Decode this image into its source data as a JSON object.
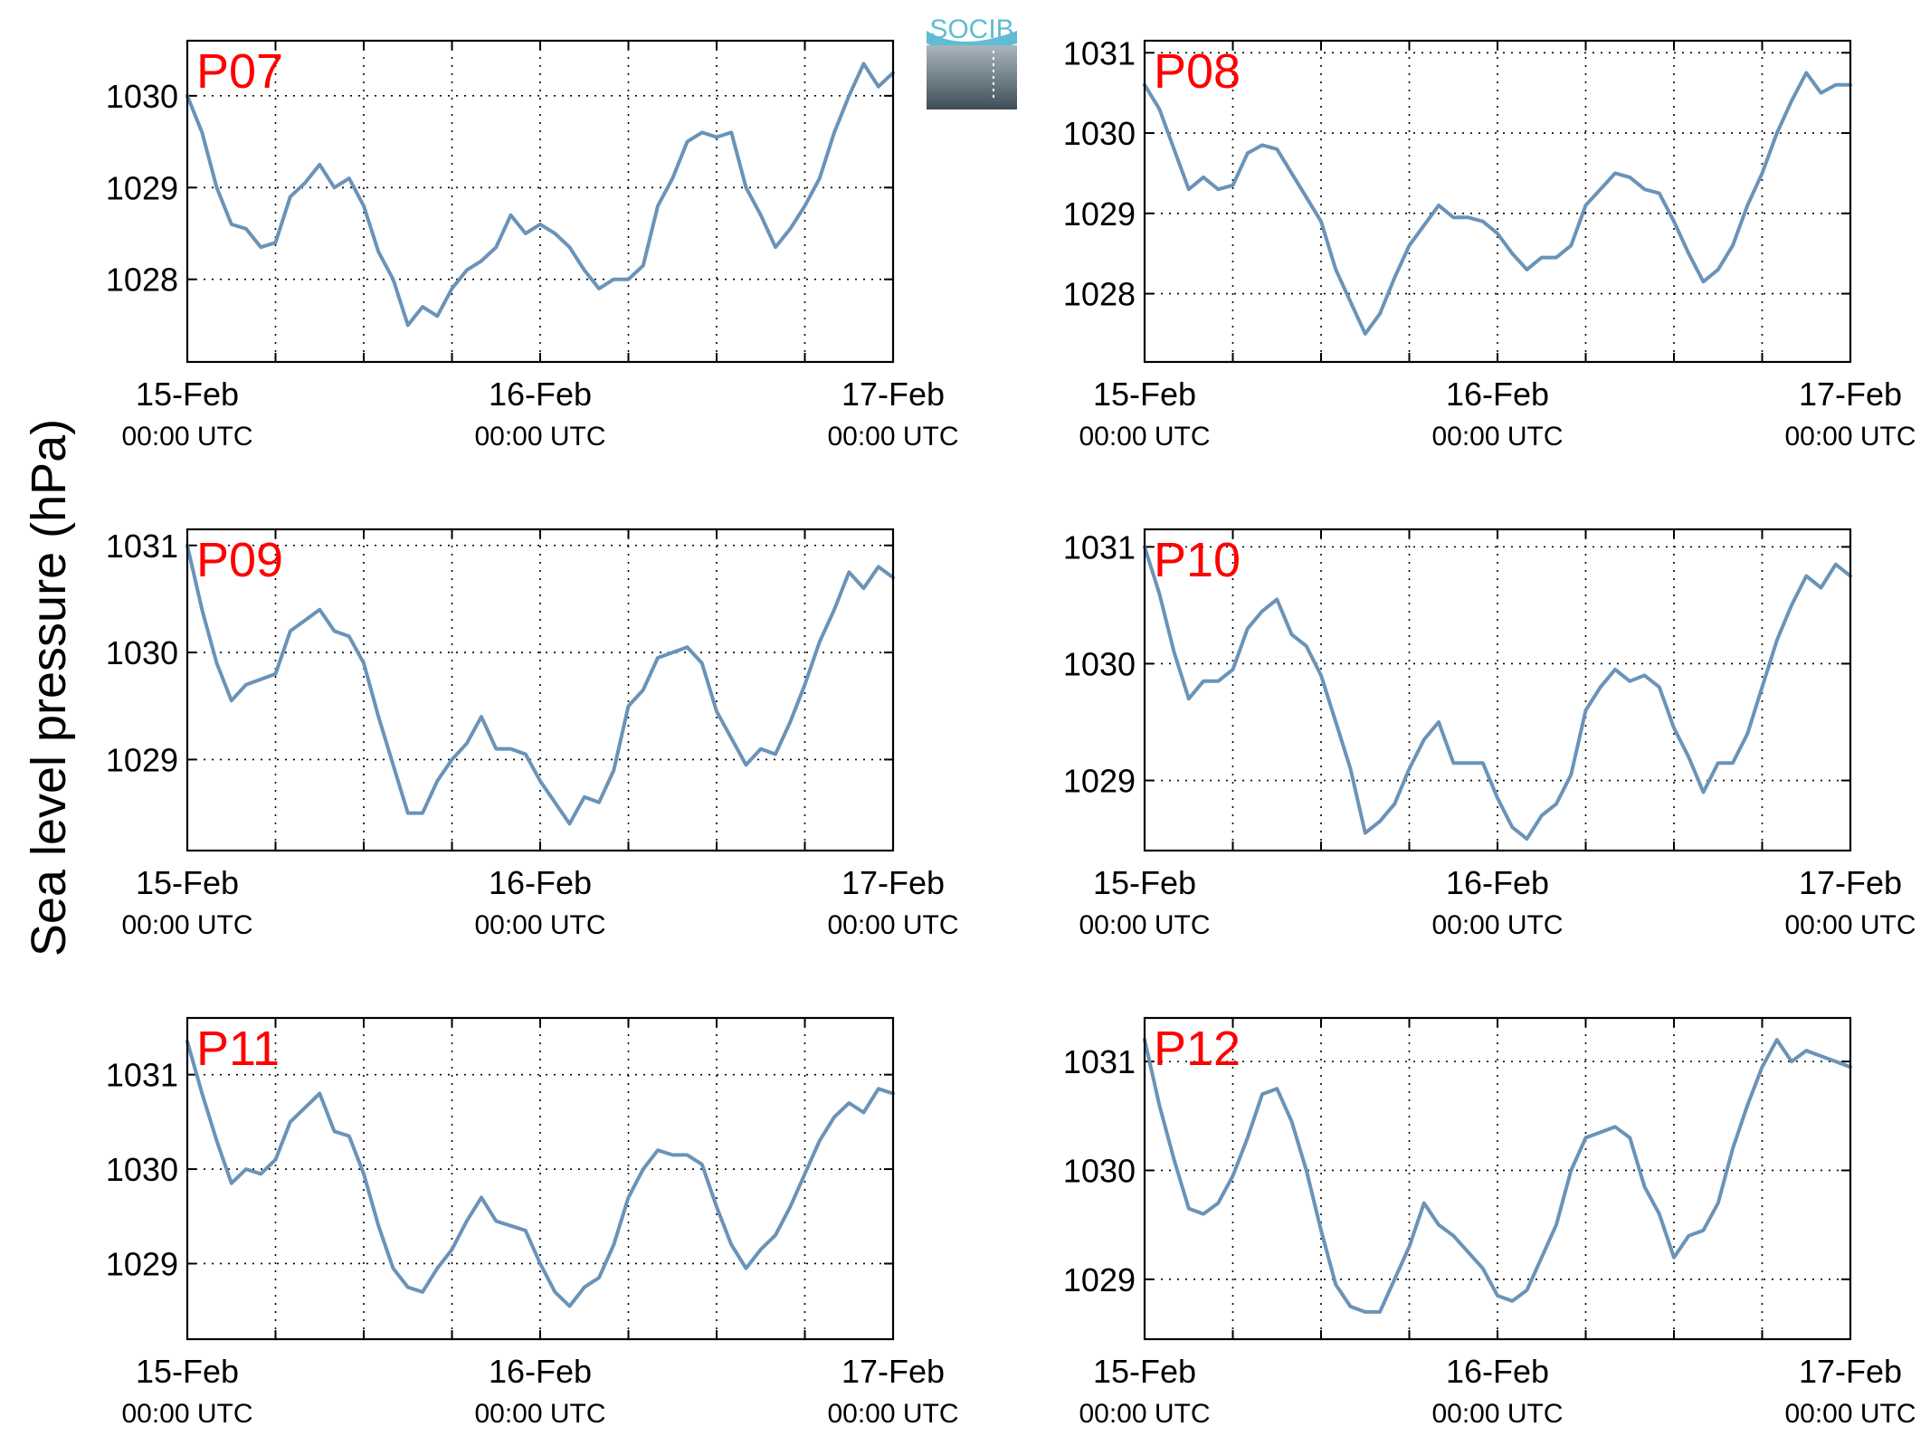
{
  "figure": {
    "ylabel": "Sea level pressure (hPa)",
    "logo_text": "SOCIB",
    "line_color": "#6a93b8",
    "station_label_color": "#ff0000",
    "x_ticks": [
      {
        "date": "15-Feb",
        "time": "00:00 UTC"
      },
      {
        "date": "16-Feb",
        "time": "00:00 UTC"
      },
      {
        "date": "17-Feb",
        "time": "00:00 UTC"
      }
    ]
  },
  "chart_data": [
    {
      "type": "line",
      "label": "P07",
      "xlabel": "",
      "ylabel": "Sea level pressure (hPa)",
      "xlim": [
        0,
        48
      ],
      "ylim": [
        1027.1,
        1030.6
      ],
      "yticks": [
        1028,
        1029,
        1030
      ],
      "grid": true,
      "x": [
        0,
        1,
        2,
        3,
        4,
        5,
        6,
        7,
        8,
        9,
        10,
        11,
        12,
        13,
        14,
        15,
        16,
        17,
        18,
        19,
        20,
        21,
        22,
        23,
        24,
        25,
        26,
        27,
        28,
        29,
        30,
        31,
        32,
        33,
        34,
        35,
        36,
        37,
        38,
        39,
        40,
        41,
        42,
        43,
        44,
        45,
        46,
        47,
        48
      ],
      "y": [
        1030.0,
        1029.6,
        1029.0,
        1028.6,
        1028.55,
        1028.35,
        1028.4,
        1028.9,
        1029.05,
        1029.25,
        1029.0,
        1029.1,
        1028.8,
        1028.3,
        1028.0,
        1027.5,
        1027.7,
        1027.6,
        1027.9,
        1028.1,
        1028.2,
        1028.35,
        1028.7,
        1028.5,
        1028.6,
        1028.5,
        1028.35,
        1028.1,
        1027.9,
        1028.0,
        1028.0,
        1028.15,
        1028.8,
        1029.1,
        1029.5,
        1029.6,
        1029.55,
        1029.6,
        1029.0,
        1028.7,
        1028.35,
        1028.55,
        1028.8,
        1029.1,
        1029.6,
        1030.0,
        1030.35,
        1030.1,
        1030.25
      ]
    },
    {
      "type": "line",
      "label": "P08",
      "xlabel": "",
      "ylabel": "Sea level pressure (hPa)",
      "xlim": [
        0,
        48
      ],
      "ylim": [
        1027.15,
        1031.15
      ],
      "yticks": [
        1028,
        1029,
        1030,
        1031
      ],
      "grid": true,
      "x": [
        0,
        1,
        2,
        3,
        4,
        5,
        6,
        7,
        8,
        9,
        10,
        11,
        12,
        13,
        14,
        15,
        16,
        17,
        18,
        19,
        20,
        21,
        22,
        23,
        24,
        25,
        26,
        27,
        28,
        29,
        30,
        31,
        32,
        33,
        34,
        35,
        36,
        37,
        38,
        39,
        40,
        41,
        42,
        43,
        44,
        45,
        46,
        47,
        48
      ],
      "y": [
        1030.6,
        1030.3,
        1029.8,
        1029.3,
        1029.45,
        1029.3,
        1029.35,
        1029.75,
        1029.85,
        1029.8,
        1029.5,
        1029.2,
        1028.9,
        1028.3,
        1027.9,
        1027.5,
        1027.75,
        1028.2,
        1028.6,
        1028.85,
        1029.1,
        1028.95,
        1028.95,
        1028.9,
        1028.75,
        1028.5,
        1028.3,
        1028.45,
        1028.45,
        1028.6,
        1029.1,
        1029.3,
        1029.5,
        1029.45,
        1029.3,
        1029.25,
        1028.9,
        1028.5,
        1028.15,
        1028.3,
        1028.6,
        1029.1,
        1029.5,
        1030.0,
        1030.4,
        1030.75,
        1030.5,
        1030.6,
        1030.6
      ]
    },
    {
      "type": "line",
      "label": "P09",
      "xlabel": "",
      "ylabel": "Sea level pressure (hPa)",
      "xlim": [
        0,
        48
      ],
      "ylim": [
        1028.15,
        1031.15
      ],
      "yticks": [
        1029,
        1030,
        1031
      ],
      "grid": true,
      "x": [
        0,
        1,
        2,
        3,
        4,
        5,
        6,
        7,
        8,
        9,
        10,
        11,
        12,
        13,
        14,
        15,
        16,
        17,
        18,
        19,
        20,
        21,
        22,
        23,
        24,
        25,
        26,
        27,
        28,
        29,
        30,
        31,
        32,
        33,
        34,
        35,
        36,
        37,
        38,
        39,
        40,
        41,
        42,
        43,
        44,
        45,
        46,
        47,
        48
      ],
      "y": [
        1031.0,
        1030.4,
        1029.9,
        1029.55,
        1029.7,
        1029.75,
        1029.8,
        1030.2,
        1030.3,
        1030.4,
        1030.2,
        1030.15,
        1029.9,
        1029.4,
        1028.95,
        1028.5,
        1028.5,
        1028.8,
        1029.0,
        1029.15,
        1029.4,
        1029.1,
        1029.1,
        1029.05,
        1028.8,
        1028.6,
        1028.4,
        1028.65,
        1028.6,
        1028.9,
        1029.5,
        1029.65,
        1029.95,
        1030.0,
        1030.05,
        1029.9,
        1029.45,
        1029.2,
        1028.95,
        1029.1,
        1029.05,
        1029.35,
        1029.7,
        1030.1,
        1030.4,
        1030.75,
        1030.6,
        1030.8,
        1030.7
      ]
    },
    {
      "type": "line",
      "label": "P10",
      "xlabel": "",
      "ylabel": "Sea level pressure (hPa)",
      "xlim": [
        0,
        48
      ],
      "ylim": [
        1028.4,
        1031.15
      ],
      "yticks": [
        1029,
        1030,
        1031
      ],
      "grid": true,
      "x": [
        0,
        1,
        2,
        3,
        4,
        5,
        6,
        7,
        8,
        9,
        10,
        11,
        12,
        13,
        14,
        15,
        16,
        17,
        18,
        19,
        20,
        21,
        22,
        23,
        24,
        25,
        26,
        27,
        28,
        29,
        30,
        31,
        32,
        33,
        34,
        35,
        36,
        37,
        38,
        39,
        40,
        41,
        42,
        43,
        44,
        45,
        46,
        47,
        48
      ],
      "y": [
        1031.0,
        1030.6,
        1030.1,
        1029.7,
        1029.85,
        1029.85,
        1029.95,
        1030.3,
        1030.45,
        1030.55,
        1030.25,
        1030.15,
        1029.9,
        1029.5,
        1029.1,
        1028.55,
        1028.65,
        1028.8,
        1029.1,
        1029.35,
        1029.5,
        1029.15,
        1029.15,
        1029.15,
        1028.85,
        1028.6,
        1028.5,
        1028.7,
        1028.8,
        1029.05,
        1029.6,
        1029.8,
        1029.95,
        1029.85,
        1029.9,
        1029.8,
        1029.45,
        1029.2,
        1028.9,
        1029.15,
        1029.15,
        1029.4,
        1029.8,
        1030.2,
        1030.5,
        1030.75,
        1030.65,
        1030.85,
        1030.75
      ]
    },
    {
      "type": "line",
      "label": "P11",
      "xlabel": "",
      "ylabel": "Sea level pressure (hPa)",
      "xlim": [
        0,
        48
      ],
      "ylim": [
        1028.2,
        1031.6
      ],
      "yticks": [
        1029,
        1030,
        1031
      ],
      "grid": true,
      "x": [
        0,
        1,
        2,
        3,
        4,
        5,
        6,
        7,
        8,
        9,
        10,
        11,
        12,
        13,
        14,
        15,
        16,
        17,
        18,
        19,
        20,
        21,
        22,
        23,
        24,
        25,
        26,
        27,
        28,
        29,
        30,
        31,
        32,
        33,
        34,
        35,
        36,
        37,
        38,
        39,
        40,
        41,
        42,
        43,
        44,
        45,
        46,
        47,
        48
      ],
      "y": [
        1031.35,
        1030.8,
        1030.3,
        1029.85,
        1030.0,
        1029.95,
        1030.1,
        1030.5,
        1030.65,
        1030.8,
        1030.4,
        1030.35,
        1029.95,
        1029.4,
        1028.95,
        1028.75,
        1028.7,
        1028.95,
        1029.15,
        1029.45,
        1029.7,
        1029.45,
        1029.4,
        1029.35,
        1029.0,
        1028.7,
        1028.55,
        1028.75,
        1028.85,
        1029.2,
        1029.7,
        1030.0,
        1030.2,
        1030.15,
        1030.15,
        1030.05,
        1029.6,
        1029.2,
        1028.95,
        1029.15,
        1029.3,
        1029.6,
        1029.95,
        1030.3,
        1030.55,
        1030.7,
        1030.6,
        1030.85,
        1030.8
      ]
    },
    {
      "type": "line",
      "label": "P12",
      "xlabel": "",
      "ylabel": "Sea level pressure (hPa)",
      "xlim": [
        0,
        48
      ],
      "ylim": [
        1028.45,
        1031.4
      ],
      "yticks": [
        1029,
        1030,
        1031
      ],
      "grid": true,
      "x": [
        0,
        1,
        2,
        3,
        4,
        5,
        6,
        7,
        8,
        9,
        10,
        11,
        12,
        13,
        14,
        15,
        16,
        17,
        18,
        19,
        20,
        21,
        22,
        23,
        24,
        25,
        26,
        27,
        28,
        29,
        30,
        31,
        32,
        33,
        34,
        35,
        36,
        37,
        38,
        39,
        40,
        41,
        42,
        43,
        44,
        45,
        46,
        47,
        48
      ],
      "y": [
        1031.2,
        1030.6,
        1030.1,
        1029.65,
        1029.6,
        1029.7,
        1029.95,
        1030.3,
        1030.7,
        1030.75,
        1030.45,
        1030.0,
        1029.45,
        1028.95,
        1028.75,
        1028.7,
        1028.7,
        1029.0,
        1029.3,
        1029.7,
        1029.5,
        1029.4,
        1029.25,
        1029.1,
        1028.85,
        1028.8,
        1028.9,
        1029.2,
        1029.5,
        1030.0,
        1030.3,
        1030.35,
        1030.4,
        1030.3,
        1029.85,
        1029.6,
        1029.2,
        1029.4,
        1029.45,
        1029.7,
        1030.2,
        1030.6,
        1030.95,
        1031.2,
        1031.0,
        1031.1,
        1031.05,
        1031.0,
        1030.95
      ]
    }
  ]
}
